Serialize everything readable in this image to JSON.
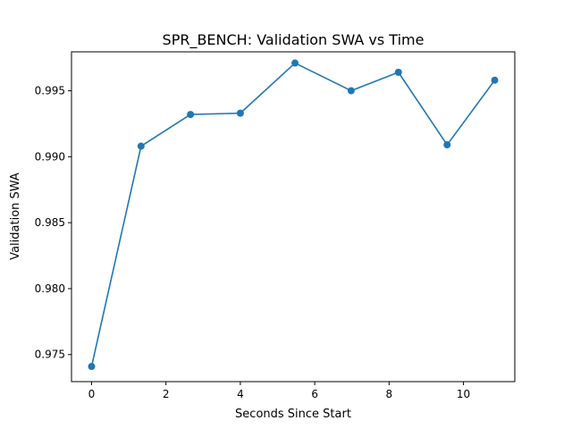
{
  "chart_data": {
    "type": "line",
    "title": "SPR_BENCH: Validation SWA vs Time",
    "xlabel": "Seconds Since Start",
    "ylabel": "Validation SWA",
    "xlim": [
      -0.54,
      11.38
    ],
    "ylim": [
      0.97295,
      0.99795
    ],
    "xticks": [
      0,
      2,
      4,
      6,
      8,
      10
    ],
    "xtick_labels": [
      "0",
      "2",
      "4",
      "6",
      "8",
      "10"
    ],
    "yticks": [
      0.975,
      0.98,
      0.985,
      0.99,
      0.995
    ],
    "ytick_labels": [
      "0.975",
      "0.980",
      "0.985",
      "0.990",
      "0.995"
    ],
    "grid": false,
    "legend": "none",
    "series": [
      {
        "color": "#1f77b4",
        "marker": "circle",
        "x": [
          0.0,
          1.33,
          2.66,
          4.0,
          5.47,
          6.98,
          8.25,
          9.56,
          10.84
        ],
        "y": [
          0.9741,
          0.9908,
          0.9932,
          0.9933,
          0.9971,
          0.995,
          0.9964,
          0.9909,
          0.9958
        ]
      }
    ]
  }
}
